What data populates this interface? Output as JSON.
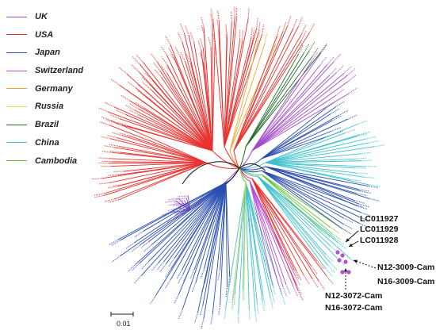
{
  "legend": [
    {
      "label": "UK",
      "color": "#a24ac8"
    },
    {
      "label": "USA",
      "color": "#e8322f"
    },
    {
      "label": "Japan",
      "color": "#2a4fb0"
    },
    {
      "label": "Switzerland",
      "color": "#b44ed3"
    },
    {
      "label": "Germany",
      "color": "#f2a52b"
    },
    {
      "label": "Russia",
      "color": "#d9e24a"
    },
    {
      "label": "Brazil",
      "color": "#1f6b2a"
    },
    {
      "label": "China",
      "color": "#3fc1cc"
    },
    {
      "label": "Cambodia",
      "color": "#66c33a"
    }
  ],
  "callouts": {
    "lc011927": "LC011927",
    "lc011929": "LC011929",
    "lc011928": "LC011928",
    "n12_3009": "N12-3009-Cam",
    "n16_3009": "N16-3009-Cam",
    "n12_3072": "N12-3072-Cam",
    "n16_3072": "N16-3072-Cam"
  },
  "scale_bar": {
    "label": "0.01"
  },
  "colors": {
    "highlight_dot": "#b44ed3",
    "arrow": "#111111"
  }
}
